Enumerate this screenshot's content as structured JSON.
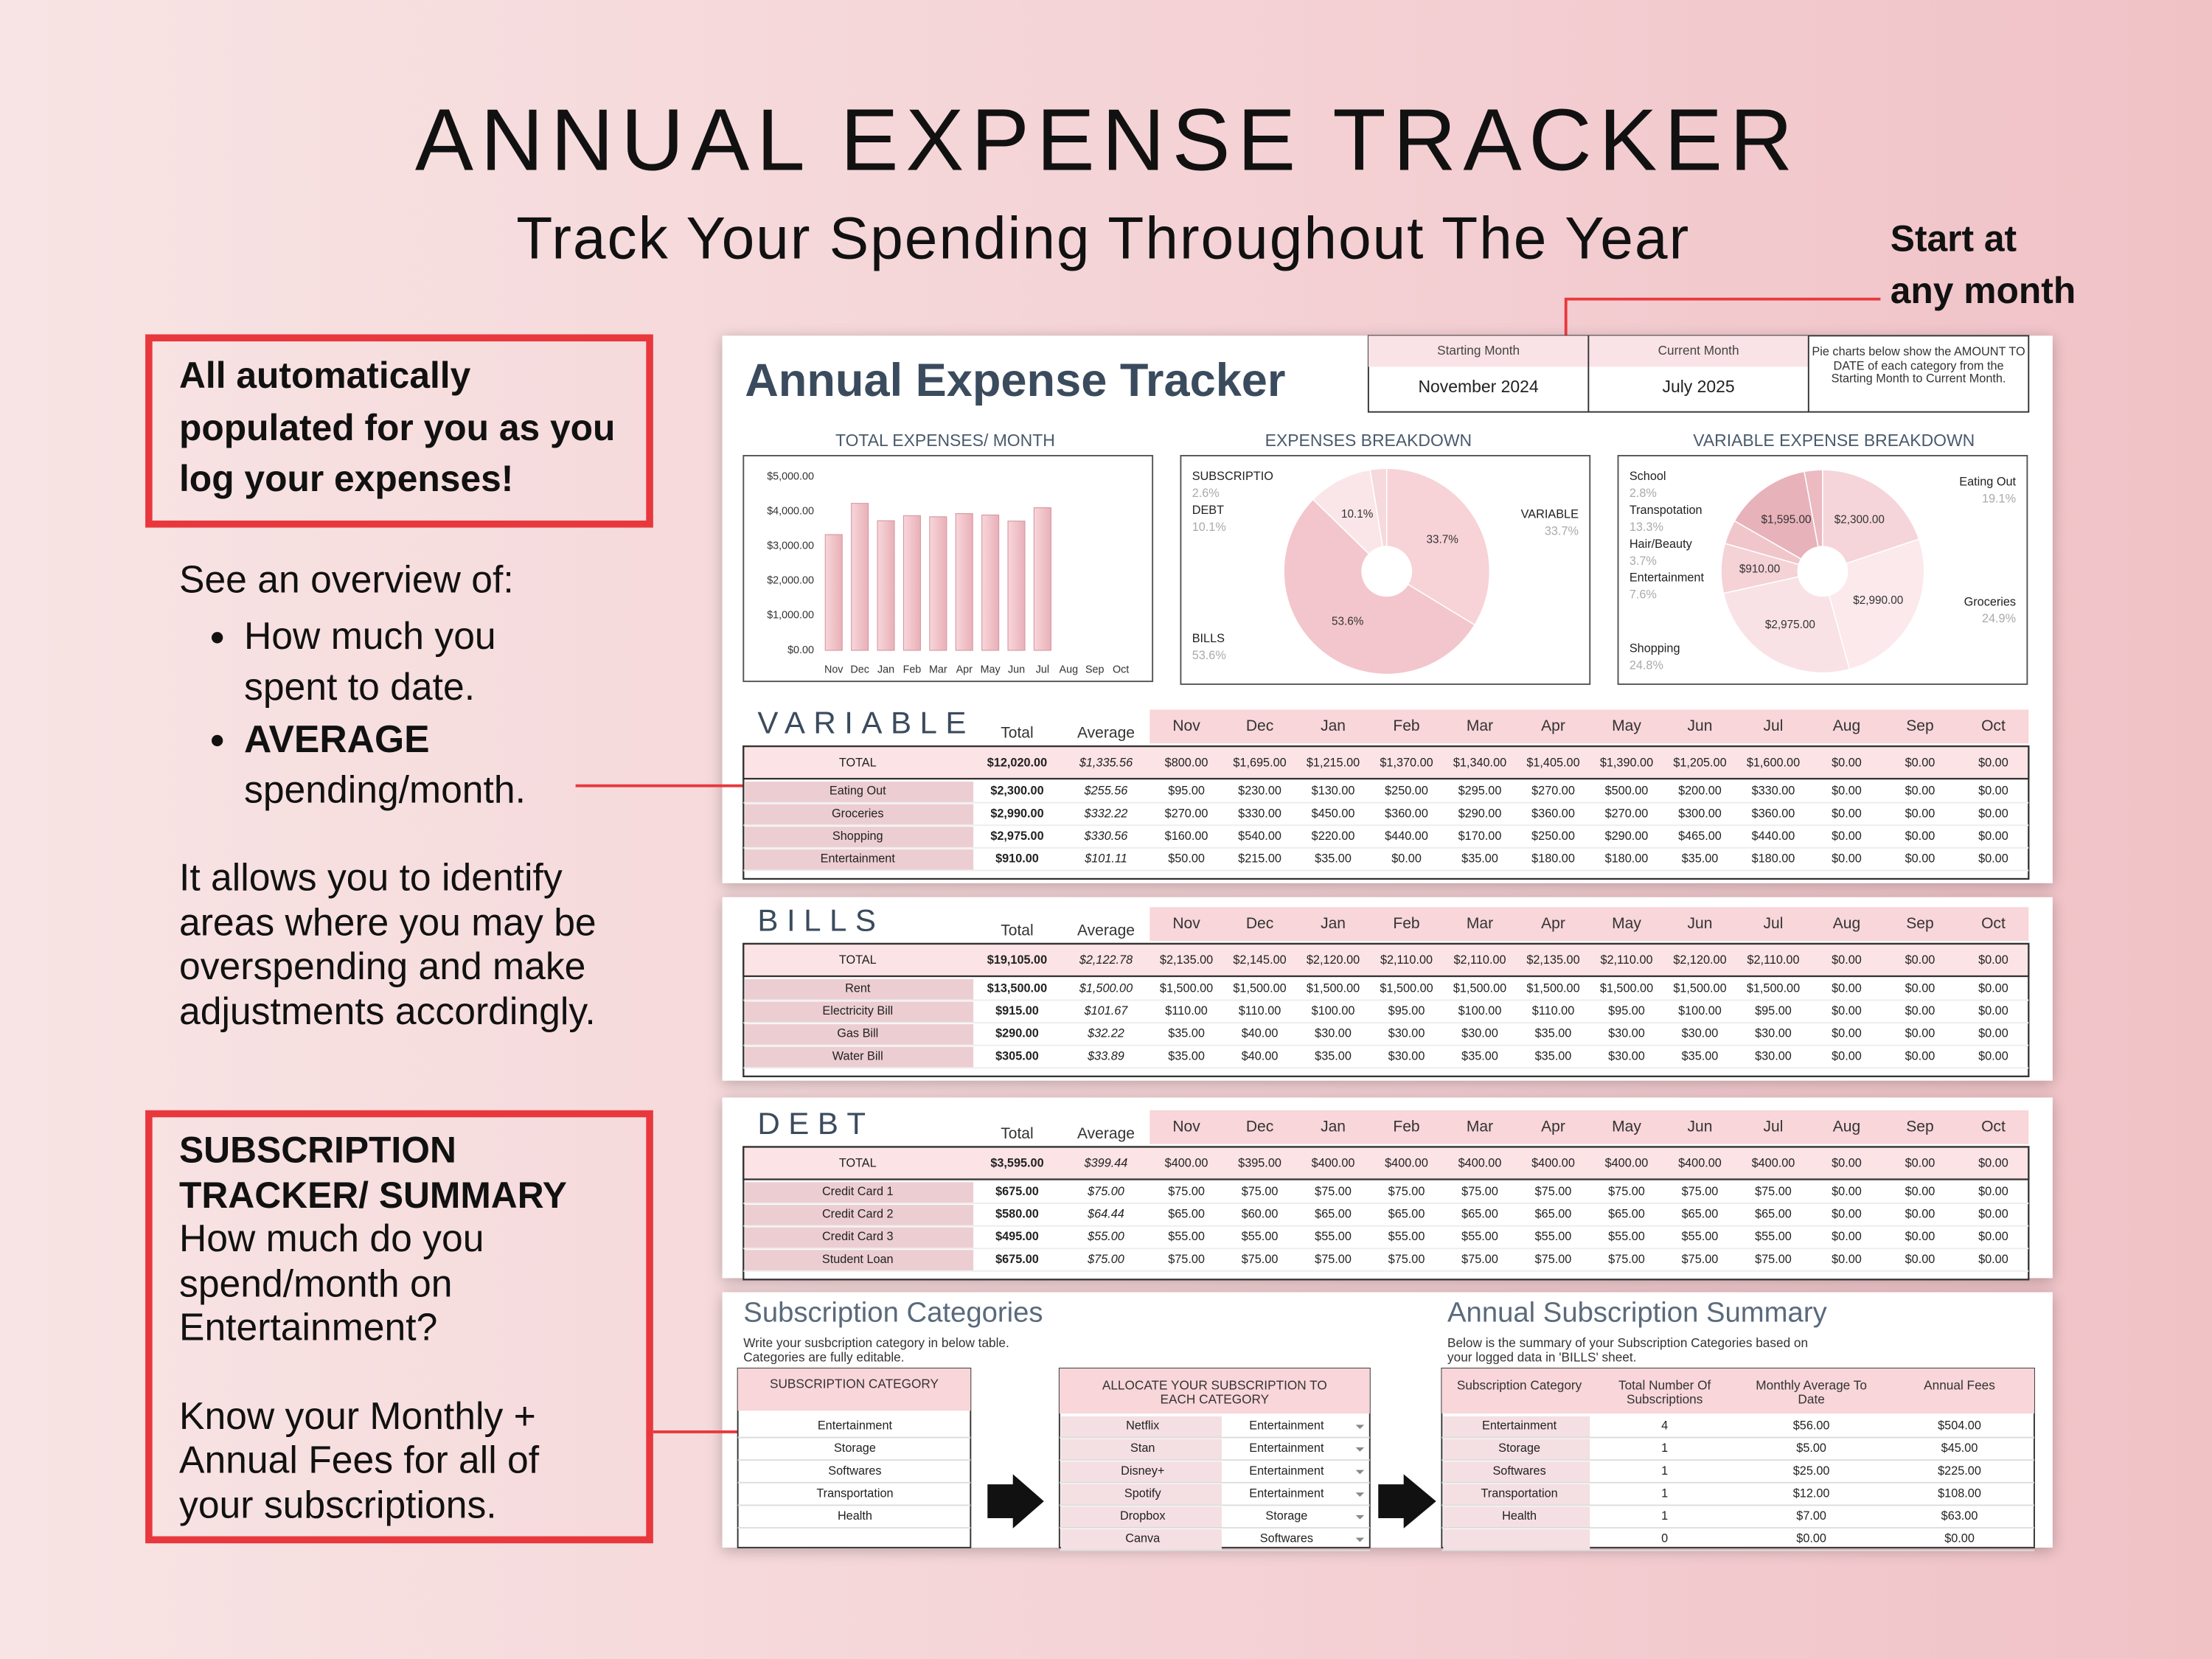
{
  "header": {
    "title": "ANNUAL EXPENSE TRACKER",
    "subtitle": "Track Your Spending Throughout The Year"
  },
  "callouts": {
    "start_note": [
      "Start at",
      "any month"
    ],
    "auto_box": "All automatically populated for you as you log your expenses!",
    "overview": {
      "intro": "See an overview of:",
      "bullets": [
        {
          "text": "How much you spent to date."
        },
        {
          "bold": "AVERAGE",
          "text": "spending/month."
        }
      ]
    },
    "identify": "It allows you to identify areas where you may be overspending and make adjustments accordingly.",
    "subscription_box": {
      "title": "SUBSCRIPTION TRACKER/ SUMMARY",
      "question": "How much do you spend/month on Entertainment?",
      "note": "Know your Monthly + Annual Fees for all of your subscriptions."
    }
  },
  "sheet": {
    "title": "Annual Expense Tracker",
    "starting_month": {
      "label": "Starting Month",
      "value": "November  2024"
    },
    "current_month": {
      "label": "Current Month",
      "value": "July  2025"
    },
    "pie_note": "Pie charts below show the AMOUNT TO DATE of each category from the Starting Month to Current Month."
  },
  "bar_chart": {
    "type": "bar",
    "title": "TOTAL EXPENSES/ MONTH",
    "categories": [
      "Nov",
      "Dec",
      "Jan",
      "Feb",
      "Mar",
      "Apr",
      "May",
      "Jun",
      "Jul",
      "Aug",
      "Sep",
      "Oct"
    ],
    "values": [
      3335,
      4235,
      3735,
      3880,
      3850,
      3940,
      3900,
      3725,
      4110,
      0,
      0,
      0
    ],
    "color": "#f2c4ca",
    "ylim": [
      0,
      5000
    ],
    "yticks": [
      {
        "value": 0,
        "label": "$0.00"
      },
      {
        "value": 1000,
        "label": "$1,000.00"
      },
      {
        "value": 2000,
        "label": "$2,000.00"
      },
      {
        "value": 3000,
        "label": "$3,000.00"
      },
      {
        "value": 4000,
        "label": "$4,000.00"
      },
      {
        "value": 5000,
        "label": "$5,000.00"
      }
    ],
    "grid": false
  },
  "pie_breakdown": {
    "type": "pie",
    "title": "EXPENSES BREAKDOWN",
    "categories": [
      "SUBSCRIPTIO",
      "DEBT",
      "BILLS",
      "VARIABLE"
    ],
    "values": [
      2.6,
      10.1,
      53.6,
      33.7
    ],
    "value_labels": [
      "2.6%",
      "10.1%",
      "53.6%",
      "33.7%"
    ],
    "inner_labels": [
      null,
      "10.1%",
      "53.6%",
      "33.7%"
    ],
    "colors": [
      "#f6d9dc",
      "#fae6e8",
      "#f2c6cc",
      "#f7d2d7"
    ]
  },
  "pie_variable": {
    "type": "pie",
    "title": "VARIABLE EXPENSE BREAKDOWN",
    "categories": [
      "School",
      "Transpotation",
      "Hair/Beauty",
      "Entertainment",
      "Shopping",
      "Groceries",
      "Eating Out"
    ],
    "values": [
      2.8,
      13.3,
      3.7,
      7.6,
      24.8,
      24.9,
      19.1
    ],
    "value_labels": [
      "2.8%",
      "13.3%",
      "3.7%",
      "7.6%",
      "24.8%",
      "24.9%",
      "19.1%"
    ],
    "inner_labels": [
      null,
      "$1,595.00",
      null,
      "$910.00",
      "$2,975.00",
      "$2,990.00",
      "$2,300.00"
    ],
    "colors": [
      "#ecbac1",
      "#e8b2ba",
      "#f0c6cb",
      "#f4d2d6",
      "#f9e2e5",
      "#fbe9eb",
      "#f5d5d9"
    ]
  },
  "sheet_tables": [
    {
      "title": "VARIABLE",
      "columns": [
        "Total",
        "Average",
        "Nov",
        "Dec",
        "Jan",
        "Feb",
        "Mar",
        "Apr",
        "May",
        "Jun",
        "Jul",
        "Aug",
        "Sep",
        "Oct"
      ],
      "total_row": [
        "TOTAL",
        "$12,020.00",
        "$1,335.56",
        "$800.00",
        "$1,695.00",
        "$1,215.00",
        "$1,370.00",
        "$1,340.00",
        "$1,405.00",
        "$1,390.00",
        "$1,205.00",
        "$1,600.00",
        "$0.00",
        "$0.00",
        "$0.00"
      ],
      "rows": [
        [
          "Eating Out",
          "$2,300.00",
          "$255.56",
          "$95.00",
          "$230.00",
          "$130.00",
          "$250.00",
          "$295.00",
          "$270.00",
          "$500.00",
          "$200.00",
          "$330.00",
          "$0.00",
          "$0.00",
          "$0.00"
        ],
        [
          "Groceries",
          "$2,990.00",
          "$332.22",
          "$270.00",
          "$330.00",
          "$450.00",
          "$360.00",
          "$290.00",
          "$360.00",
          "$270.00",
          "$300.00",
          "$360.00",
          "$0.00",
          "$0.00",
          "$0.00"
        ],
        [
          "Shopping",
          "$2,975.00",
          "$330.56",
          "$160.00",
          "$540.00",
          "$220.00",
          "$440.00",
          "$170.00",
          "$250.00",
          "$290.00",
          "$465.00",
          "$440.00",
          "$0.00",
          "$0.00",
          "$0.00"
        ],
        [
          "Entertainment",
          "$910.00",
          "$101.11",
          "$50.00",
          "$215.00",
          "$35.00",
          "$0.00",
          "$35.00",
          "$180.00",
          "$180.00",
          "$35.00",
          "$180.00",
          "$0.00",
          "$0.00",
          "$0.00"
        ]
      ]
    },
    {
      "title": "BILLS",
      "columns": [
        "Total",
        "Average",
        "Nov",
        "Dec",
        "Jan",
        "Feb",
        "Mar",
        "Apr",
        "May",
        "Jun",
        "Jul",
        "Aug",
        "Sep",
        "Oct"
      ],
      "total_row": [
        "TOTAL",
        "$19,105.00",
        "$2,122.78",
        "$2,135.00",
        "$2,145.00",
        "$2,120.00",
        "$2,110.00",
        "$2,110.00",
        "$2,135.00",
        "$2,110.00",
        "$2,120.00",
        "$2,110.00",
        "$0.00",
        "$0.00",
        "$0.00"
      ],
      "rows": [
        [
          "Rent",
          "$13,500.00",
          "$1,500.00",
          "$1,500.00",
          "$1,500.00",
          "$1,500.00",
          "$1,500.00",
          "$1,500.00",
          "$1,500.00",
          "$1,500.00",
          "$1,500.00",
          "$1,500.00",
          "$0.00",
          "$0.00",
          "$0.00"
        ],
        [
          "Electricity Bill",
          "$915.00",
          "$101.67",
          "$110.00",
          "$110.00",
          "$100.00",
          "$95.00",
          "$100.00",
          "$110.00",
          "$95.00",
          "$100.00",
          "$95.00",
          "$0.00",
          "$0.00",
          "$0.00"
        ],
        [
          "Gas Bill",
          "$290.00",
          "$32.22",
          "$35.00",
          "$40.00",
          "$30.00",
          "$30.00",
          "$30.00",
          "$35.00",
          "$30.00",
          "$30.00",
          "$30.00",
          "$0.00",
          "$0.00",
          "$0.00"
        ],
        [
          "Water Bill",
          "$305.00",
          "$33.89",
          "$35.00",
          "$40.00",
          "$35.00",
          "$30.00",
          "$35.00",
          "$35.00",
          "$30.00",
          "$35.00",
          "$30.00",
          "$0.00",
          "$0.00",
          "$0.00"
        ]
      ]
    },
    {
      "title": "DEBT",
      "columns": [
        "Total",
        "Average",
        "Nov",
        "Dec",
        "Jan",
        "Feb",
        "Mar",
        "Apr",
        "May",
        "Jun",
        "Jul",
        "Aug",
        "Sep",
        "Oct"
      ],
      "total_row": [
        "TOTAL",
        "$3,595.00",
        "$399.44",
        "$400.00",
        "$395.00",
        "$400.00",
        "$400.00",
        "$400.00",
        "$400.00",
        "$400.00",
        "$400.00",
        "$400.00",
        "$0.00",
        "$0.00",
        "$0.00"
      ],
      "rows": [
        [
          "Credit Card 1",
          "$675.00",
          "$75.00",
          "$75.00",
          "$75.00",
          "$75.00",
          "$75.00",
          "$75.00",
          "$75.00",
          "$75.00",
          "$75.00",
          "$75.00",
          "$0.00",
          "$0.00",
          "$0.00"
        ],
        [
          "Credit Card 2",
          "$580.00",
          "$64.44",
          "$65.00",
          "$60.00",
          "$65.00",
          "$65.00",
          "$65.00",
          "$65.00",
          "$65.00",
          "$65.00",
          "$65.00",
          "$0.00",
          "$0.00",
          "$0.00"
        ],
        [
          "Credit Card 3",
          "$495.00",
          "$55.00",
          "$55.00",
          "$55.00",
          "$55.00",
          "$55.00",
          "$55.00",
          "$55.00",
          "$55.00",
          "$55.00",
          "$55.00",
          "$0.00",
          "$0.00",
          "$0.00"
        ],
        [
          "Student Loan",
          "$675.00",
          "$75.00",
          "$75.00",
          "$75.00",
          "$75.00",
          "$75.00",
          "$75.00",
          "$75.00",
          "$75.00",
          "$75.00",
          "$75.00",
          "$0.00",
          "$0.00",
          "$0.00"
        ]
      ]
    }
  ],
  "subscription_categories": {
    "title": "Subscription Categories",
    "description": "Write your susbcription category in below table. Categories are fully editable.",
    "header": "SUBSCRIPTION CATEGORY",
    "rows": [
      "Entertainment",
      "Storage",
      "Softwares",
      "Transportation",
      "Health"
    ]
  },
  "allocate": {
    "header": "ALLOCATE YOUR SUBSCRIPTION TO EACH CATEGORY",
    "rows": [
      [
        "Netflix",
        "Entertainment"
      ],
      [
        "Stan",
        "Entertainment"
      ],
      [
        "Disney+",
        "Entertainment"
      ],
      [
        "Spotify",
        "Entertainment"
      ],
      [
        "Dropbox",
        "Storage"
      ],
      [
        "Canva",
        "Softwares"
      ]
    ]
  },
  "summary": {
    "title": "Annual Subscription Summary",
    "description": "Below is the summary of your Subscription Categories based on your logged data in 'BILLS' sheet.",
    "columns": [
      "Subscription Category",
      "Total Number Of Subscriptions",
      "Monthly Average To Date",
      "Annual Fees"
    ],
    "rows": [
      [
        "Entertainment",
        "4",
        "$56.00",
        "$504.00"
      ],
      [
        "Storage",
        "1",
        "$5.00",
        "$45.00"
      ],
      [
        "Softwares",
        "1",
        "$25.00",
        "$225.00"
      ],
      [
        "Transportation",
        "1",
        "$12.00",
        "$108.00"
      ],
      [
        "Health",
        "1",
        "$7.00",
        "$63.00"
      ],
      [
        null,
        "0",
        "$0.00",
        "$0.00"
      ]
    ]
  }
}
